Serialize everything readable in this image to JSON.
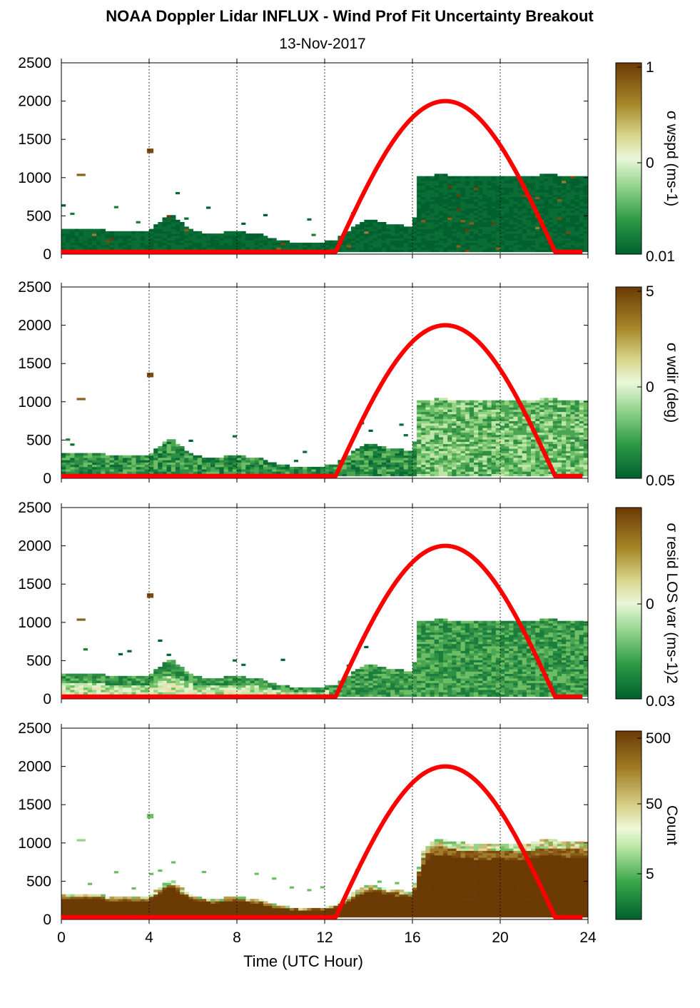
{
  "title": "NOAA Doppler Lidar INFLUX - Wind Prof Fit Uncertainty Breakout",
  "subtitle": "13-Nov-2017",
  "colors": {
    "dark_green": "#00602e",
    "light_green": "#dff5c8",
    "tan": "#b89a40",
    "brown": "#6b3a05",
    "solar_curve": "#ff0000"
  },
  "chart_data": [
    {
      "type": "heatmap",
      "panel": "sigma-wspd",
      "xlabel": "",
      "ylabel": "",
      "xlim": [
        0,
        24
      ],
      "ylim": [
        0,
        2500
      ],
      "x_ticks": [
        0,
        4,
        8,
        12,
        16,
        20,
        24
      ],
      "y_ticks": [
        0,
        500,
        1000,
        1500,
        2000,
        2500
      ],
      "grid": "vertical dotted",
      "colorbar": {
        "label": "σ wspd (ms-1)",
        "scale": "log",
        "ticks": [
          "1",
          "0",
          "0.01"
        ]
      }
    },
    {
      "type": "heatmap",
      "panel": "sigma-wdir",
      "xlabel": "",
      "ylabel": "",
      "xlim": [
        0,
        24
      ],
      "ylim": [
        0,
        2500
      ],
      "x_ticks": [
        0,
        4,
        8,
        12,
        16,
        20,
        24
      ],
      "y_ticks": [
        0,
        500,
        1000,
        1500,
        2000,
        2500
      ],
      "grid": "vertical dotted",
      "colorbar": {
        "label": "σ wdir (deg)",
        "scale": "log",
        "ticks": [
          "5",
          "0",
          "0.05"
        ]
      }
    },
    {
      "type": "heatmap",
      "panel": "sigma-resid-los-var",
      "xlabel": "",
      "ylabel": "",
      "xlim": [
        0,
        24
      ],
      "ylim": [
        0,
        2500
      ],
      "x_ticks": [
        0,
        4,
        8,
        12,
        16,
        20,
        24
      ],
      "y_ticks": [
        0,
        500,
        1000,
        1500,
        2000,
        2500
      ],
      "grid": "vertical dotted",
      "colorbar": {
        "label": "σ resid LOS var (ms-1)2",
        "scale": "log",
        "ticks": [
          "0",
          "0.03"
        ]
      }
    },
    {
      "type": "heatmap",
      "panel": "count",
      "xlabel": "Time (UTC Hour)",
      "ylabel": "",
      "xlim": [
        0,
        24
      ],
      "ylim": [
        0,
        2500
      ],
      "x_ticks": [
        0,
        4,
        8,
        12,
        16,
        20,
        24
      ],
      "y_ticks": [
        0,
        500,
        1000,
        1500,
        2000,
        2500
      ],
      "grid": "vertical dotted",
      "colorbar": {
        "label": "Count",
        "scale": "log",
        "ticks": [
          "500",
          "50",
          "5"
        ]
      }
    }
  ],
  "overlay": {
    "type": "line",
    "series_x": [
      0,
      12.4,
      13,
      14,
      15,
      16,
      17,
      17.5,
      18,
      19,
      20,
      21,
      22,
      22.6,
      24
    ],
    "series_y": [
      30,
      30,
      250,
      870,
      1400,
      1780,
      1970,
      2000,
      1970,
      1780,
      1400,
      870,
      250,
      30,
      30
    ]
  },
  "count_top_profile": {
    "x": [
      0,
      1,
      2,
      3,
      4,
      5,
      6,
      7,
      8,
      9,
      10,
      11,
      12,
      12.5,
      13,
      14,
      15,
      16,
      16.5,
      17,
      18,
      19,
      20,
      21,
      22,
      23,
      23.8
    ],
    "height": [
      330,
      320,
      300,
      290,
      300,
      520,
      280,
      260,
      280,
      250,
      160,
      130,
      150,
      170,
      280,
      450,
      380,
      350,
      900,
      1050,
      1000,
      970,
      980,
      960,
      1030,
      1010,
      1000
    ]
  }
}
